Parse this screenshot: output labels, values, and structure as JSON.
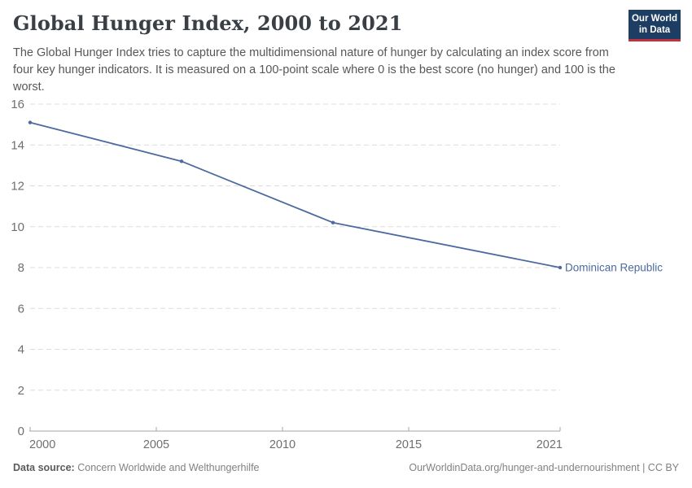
{
  "header": {
    "title": "Global Hunger Index, 2000 to 2021",
    "subtitle": "The Global Hunger Index tries to capture the multidimensional nature of hunger by calculating an index score from four key hunger indicators. It is measured on a 100-point scale where 0 is the best score (no hunger) and 100 is the worst.",
    "logo": {
      "line1": "Our World",
      "line2": "in Data"
    }
  },
  "chart_data": {
    "type": "line",
    "title": "Global Hunger Index, 2000 to 2021",
    "xlabel": "",
    "ylabel": "",
    "xlim": [
      2000,
      2021
    ],
    "ylim": [
      0,
      16
    ],
    "x_ticks": [
      2000,
      2005,
      2010,
      2015,
      2021
    ],
    "y_ticks": [
      0,
      2,
      4,
      6,
      8,
      10,
      12,
      14,
      16
    ],
    "grid": "horizontal-dashed",
    "legend": "line-end-label",
    "series": [
      {
        "name": "Dominican Republic",
        "color": "#4c6a9e",
        "x": [
          2000,
          2006,
          2012,
          2021
        ],
        "y": [
          15.1,
          13.2,
          10.2,
          8.0
        ]
      }
    ]
  },
  "footer": {
    "source_label": "Data source:",
    "source_text": "Concern Worldwide and Welthungerhilfe",
    "attribution": "OurWorldinData.org/hunger-and-undernourishment | CC BY"
  },
  "colors": {
    "line": "#4c6a9e",
    "grid": "#dcdcdc",
    "axis": "#a5a5a5",
    "tick_text": "#6f6f6f",
    "title_text": "#3a3f45",
    "subtitle_text": "#575757",
    "footer_text": "#818181",
    "logo_bg": "#1d3d63",
    "logo_accent": "#c0323c"
  }
}
